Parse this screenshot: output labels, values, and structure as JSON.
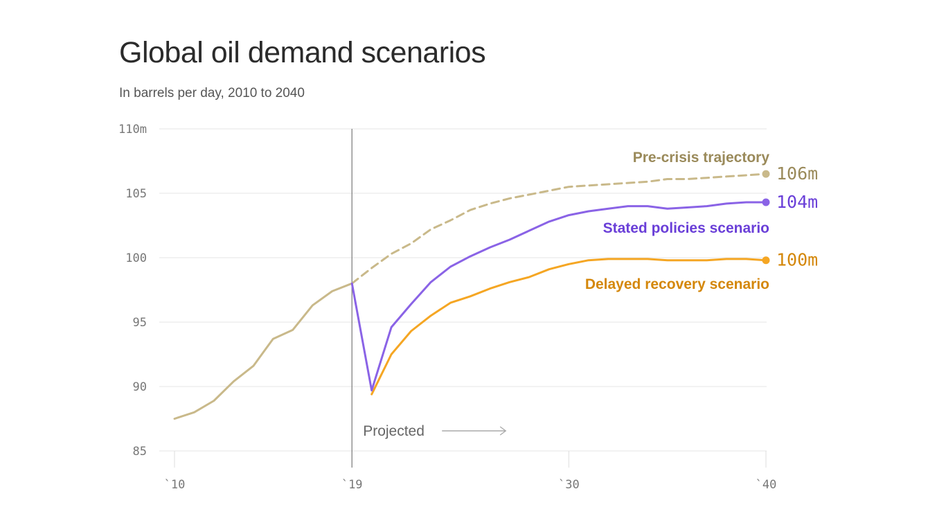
{
  "header": {
    "title": "Global oil demand scenarios",
    "subtitle": "In barrels per day, 2010 to 2040"
  },
  "chart_data": {
    "type": "line",
    "title": "Global oil demand scenarios",
    "subtitle": "In barrels per day, 2010 to 2040",
    "xlabel": "",
    "ylabel": "",
    "xlim": [
      2010,
      2040
    ],
    "ylim": [
      85,
      110
    ],
    "y_ticks": [
      {
        "value": 110,
        "label": "110m"
      },
      {
        "value": 105,
        "label": "105"
      },
      {
        "value": 100,
        "label": "100"
      },
      {
        "value": 95,
        "label": "95"
      },
      {
        "value": 90,
        "label": "90"
      },
      {
        "value": 85,
        "label": "85"
      }
    ],
    "x_ticks": [
      {
        "value": 2010,
        "label": "`10"
      },
      {
        "value": 2019,
        "label": "`19"
      },
      {
        "value": 2030,
        "label": "`30"
      },
      {
        "value": 2040,
        "label": "`40"
      }
    ],
    "grid": true,
    "projection_marker": {
      "x": 2019,
      "label": "Projected"
    },
    "series": [
      {
        "key": "historical",
        "color": "#c9b98a",
        "dashed": false,
        "x": [
          2010,
          2011,
          2012,
          2013,
          2014,
          2015,
          2016,
          2017,
          2018,
          2019
        ],
        "y": [
          87.5,
          88.0,
          88.9,
          90.4,
          91.6,
          93.7,
          94.4,
          96.3,
          97.4,
          98.0
        ]
      },
      {
        "name": "Pre-crisis trajectory",
        "color": "#c9b98a",
        "label_color": "#9a8a5a",
        "dashed": true,
        "end_label": "106m",
        "x": [
          2019,
          2020,
          2021,
          2022,
          2023,
          2024,
          2025,
          2026,
          2027,
          2028,
          2029,
          2030,
          2031,
          2032,
          2033,
          2034,
          2035,
          2036,
          2037,
          2038,
          2039,
          2040
        ],
        "y": [
          98.0,
          99.2,
          100.3,
          101.1,
          102.2,
          102.9,
          103.7,
          104.2,
          104.6,
          104.9,
          105.2,
          105.5,
          105.6,
          105.7,
          105.8,
          105.9,
          106.1,
          106.1,
          106.2,
          106.3,
          106.4,
          106.5
        ]
      },
      {
        "name": "Stated policies scenario",
        "color": "#8a63e6",
        "label_color": "#6a3fd8",
        "dashed": false,
        "end_label": "104m",
        "x": [
          2019,
          2020,
          2021,
          2022,
          2023,
          2024,
          2025,
          2026,
          2027,
          2028,
          2029,
          2030,
          2031,
          2032,
          2033,
          2034,
          2035,
          2036,
          2037,
          2038,
          2039,
          2040
        ],
        "y": [
          98.0,
          89.7,
          94.6,
          96.4,
          98.1,
          99.3,
          100.1,
          100.8,
          101.4,
          102.1,
          102.8,
          103.3,
          103.6,
          103.8,
          104.0,
          104.0,
          103.8,
          103.9,
          104.0,
          104.2,
          104.3,
          104.3
        ]
      },
      {
        "name": "Delayed recovery scenario",
        "color": "#f5a623",
        "label_color": "#d4870a",
        "dashed": false,
        "end_label": "100m",
        "x": [
          2020,
          2021,
          2022,
          2023,
          2024,
          2025,
          2026,
          2027,
          2028,
          2029,
          2030,
          2031,
          2032,
          2033,
          2034,
          2035,
          2036,
          2037,
          2038,
          2039,
          2040
        ],
        "y": [
          89.4,
          92.5,
          94.3,
          95.5,
          96.5,
          97.0,
          97.6,
          98.1,
          98.5,
          99.1,
          99.5,
          99.8,
          99.9,
          99.9,
          99.9,
          99.8,
          99.8,
          99.8,
          99.9,
          99.9,
          99.8
        ]
      }
    ]
  }
}
